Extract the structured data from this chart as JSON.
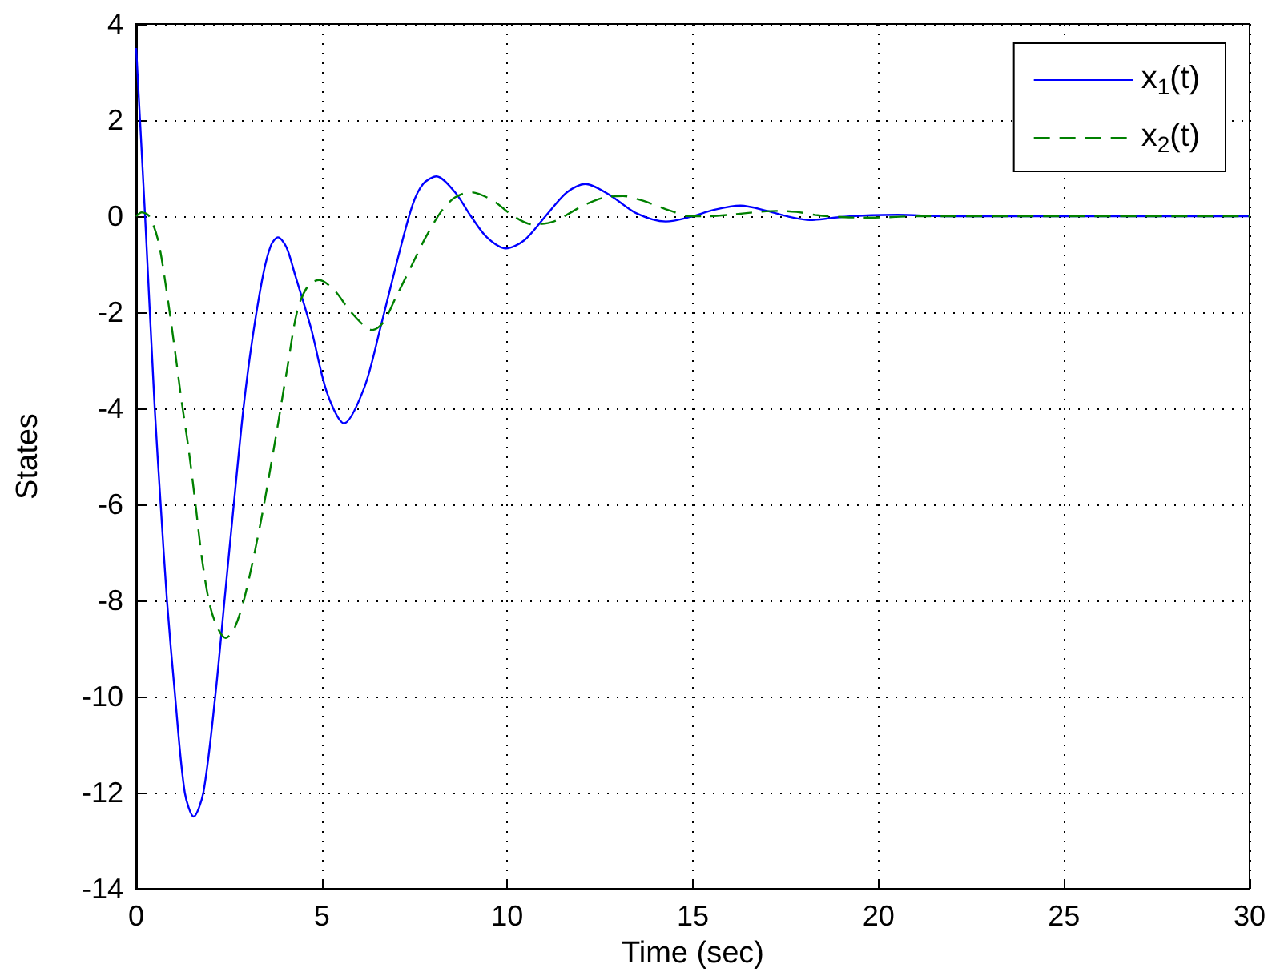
{
  "chart_data": {
    "type": "line",
    "xlabel": "Time (sec)",
    "ylabel": "States",
    "xlim": [
      0,
      30
    ],
    "xticks": [
      0,
      5,
      10,
      15,
      20,
      25,
      30
    ],
    "ylim": [
      -14,
      4
    ],
    "yticks": [
      -14,
      -12,
      -10,
      -8,
      -6,
      -4,
      -2,
      0,
      2,
      4
    ],
    "grid": true,
    "legend": "top right",
    "marker": "none",
    "series": [
      {
        "name": "x$_{1}$(t)",
        "color": "#0000ff",
        "line_style": "solid",
        "x": [
          0,
          0.24,
          0.5,
          0.66,
          0.83,
          1.05,
          1.31,
          1.55,
          1.81,
          2.13,
          2.38,
          2.63,
          2.89,
          3.13,
          3.42,
          3.63,
          3.82,
          4.05,
          4.28,
          4.71,
          5.14,
          5.6,
          6.15,
          6.58,
          7.01,
          7.44,
          7.73,
          8.09,
          8.59,
          9.02,
          9.45,
          9.96,
          10.46,
          11.03,
          11.61,
          12.11,
          12.76,
          13.48,
          14.27,
          14.91,
          15.56,
          16.28,
          17.0,
          17.64,
          18.15,
          18.94,
          19.8,
          20.52,
          21.8,
          30
        ],
        "values": [
          3.5,
          0,
          -4,
          -6,
          -8,
          -10,
          -12,
          -12.5,
          -12,
          -10,
          -8,
          -6,
          -4,
          -2.56,
          -1.22,
          -0.61,
          -0.44,
          -0.65,
          -1.22,
          -2.33,
          -3.67,
          -4.31,
          -3.56,
          -2.33,
          -1.0,
          0.22,
          0.67,
          0.83,
          0.5,
          0,
          -0.44,
          -0.67,
          -0.5,
          0,
          0.5,
          0.67,
          0.44,
          0.06,
          -0.11,
          -0.02,
          0.13,
          0.22,
          0.11,
          -0.02,
          -0.08,
          -0.02,
          0.02,
          0.03,
          0,
          0
        ]
      },
      {
        "name": "x$_{2}$(t)",
        "color": "#008000",
        "line_style": "dashed",
        "x": [
          0,
          0.15,
          0.35,
          0.59,
          0.83,
          1.05,
          1.22,
          1.41,
          1.59,
          1.8,
          2.05,
          2.41,
          2.63,
          2.92,
          3.35,
          3.71,
          4.07,
          4.35,
          4.64,
          4.93,
          5.36,
          5.79,
          6.37,
          6.65,
          7.01,
          7.44,
          7.8,
          8.23,
          8.59,
          9.02,
          9.6,
          10.17,
          10.67,
          11.25,
          12.04,
          12.62,
          13.12,
          13.62,
          14.41,
          14.9,
          15.4,
          16.0,
          16.78,
          17.28,
          17.79,
          18.36,
          19.08,
          19.8,
          21.1,
          30
        ],
        "values": [
          0,
          0.08,
          0,
          -0.5,
          -1.61,
          -2.83,
          -3.83,
          -4.83,
          -5.94,
          -7.28,
          -8.28,
          -8.78,
          -8.61,
          -7.94,
          -6.39,
          -4.83,
          -3.17,
          -1.94,
          -1.44,
          -1.33,
          -1.56,
          -2.0,
          -2.37,
          -2.22,
          -1.67,
          -1.0,
          -0.44,
          0.11,
          0.39,
          0.5,
          0.33,
          0,
          -0.17,
          -0.11,
          0.22,
          0.39,
          0.42,
          0.33,
          0.11,
          0,
          0,
          0.03,
          0.09,
          0.11,
          0.09,
          0.02,
          -0.02,
          -0.03,
          0,
          0
        ]
      }
    ]
  }
}
